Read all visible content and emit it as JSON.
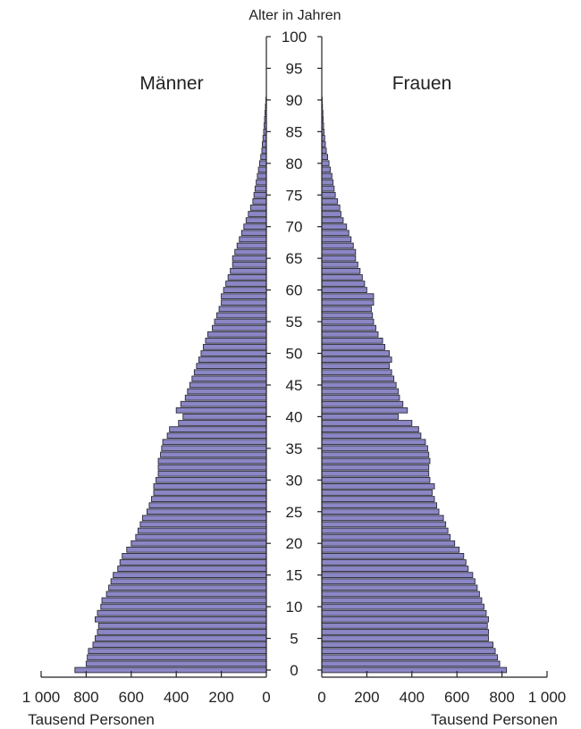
{
  "chart_data": {
    "type": "bar",
    "orientation": "horizontal",
    "subtype": "population-pyramid",
    "title": "Alter in Jahren",
    "left_group": "Männer",
    "right_group": "Frauen",
    "left_xlabel": "Tausend Personen",
    "right_xlabel": "Tausend Personen",
    "age_ticks": [
      "0",
      "5",
      "10",
      "15",
      "20",
      "25",
      "30",
      "35",
      "40",
      "45",
      "50",
      "55",
      "60",
      "65",
      "70",
      "75",
      "80",
      "85",
      "90",
      "95",
      "100"
    ],
    "age_range": [
      0,
      100
    ],
    "left_ticks": [
      "1 000",
      "800",
      "600",
      "400",
      "200",
      "0"
    ],
    "right_ticks": [
      "0",
      "200",
      "400",
      "600",
      "800",
      "1 000"
    ],
    "xlim": [
      0,
      1000
    ],
    "ages": [
      0,
      1,
      2,
      3,
      4,
      5,
      6,
      7,
      8,
      9,
      10,
      11,
      12,
      13,
      14,
      15,
      16,
      17,
      18,
      19,
      20,
      21,
      22,
      23,
      24,
      25,
      26,
      27,
      28,
      29,
      30,
      31,
      32,
      33,
      34,
      35,
      36,
      37,
      38,
      39,
      40,
      41,
      42,
      43,
      44,
      45,
      46,
      47,
      48,
      49,
      50,
      51,
      52,
      53,
      54,
      55,
      56,
      57,
      58,
      59,
      60,
      61,
      62,
      63,
      64,
      65,
      66,
      67,
      68,
      69,
      70,
      71,
      72,
      73,
      74,
      75,
      76,
      77,
      78,
      79,
      80,
      81,
      82,
      83,
      84,
      85,
      86,
      87,
      88,
      89,
      90
    ],
    "series": [
      {
        "name": "Männer",
        "values": [
          850,
          800,
          795,
          790,
          770,
          760,
          750,
          745,
          760,
          750,
          735,
          730,
          710,
          700,
          690,
          680,
          660,
          650,
          640,
          620,
          600,
          580,
          570,
          560,
          550,
          530,
          520,
          510,
          500,
          500,
          490,
          480,
          480,
          480,
          470,
          465,
          460,
          440,
          430,
          390,
          370,
          400,
          380,
          360,
          350,
          340,
          330,
          320,
          310,
          300,
          290,
          280,
          270,
          260,
          240,
          230,
          220,
          210,
          200,
          200,
          190,
          180,
          170,
          160,
          150,
          150,
          140,
          130,
          120,
          110,
          100,
          90,
          80,
          70,
          60,
          55,
          50,
          45,
          40,
          35,
          30,
          25,
          20,
          18,
          15,
          12,
          10,
          8,
          6,
          4,
          2
        ]
      },
      {
        "name": "Frauen",
        "values": [
          820,
          790,
          780,
          770,
          760,
          740,
          740,
          735,
          740,
          730,
          720,
          710,
          700,
          690,
          680,
          670,
          650,
          640,
          630,
          610,
          590,
          570,
          560,
          550,
          540,
          520,
          510,
          500,
          490,
          500,
          480,
          475,
          475,
          480,
          475,
          470,
          460,
          440,
          430,
          400,
          340,
          380,
          360,
          345,
          340,
          330,
          320,
          310,
          300,
          310,
          300,
          280,
          270,
          250,
          240,
          230,
          225,
          220,
          230,
          230,
          200,
          190,
          180,
          170,
          160,
          150,
          150,
          140,
          130,
          120,
          110,
          95,
          85,
          80,
          70,
          60,
          55,
          50,
          45,
          38,
          32,
          26,
          20,
          16,
          13,
          10,
          8,
          6,
          5,
          3,
          2
        ]
      }
    ],
    "colors": {
      "bar_fill": "#8b86c4",
      "bar_stroke": "#2a2a3a",
      "axis": "#222222"
    }
  }
}
